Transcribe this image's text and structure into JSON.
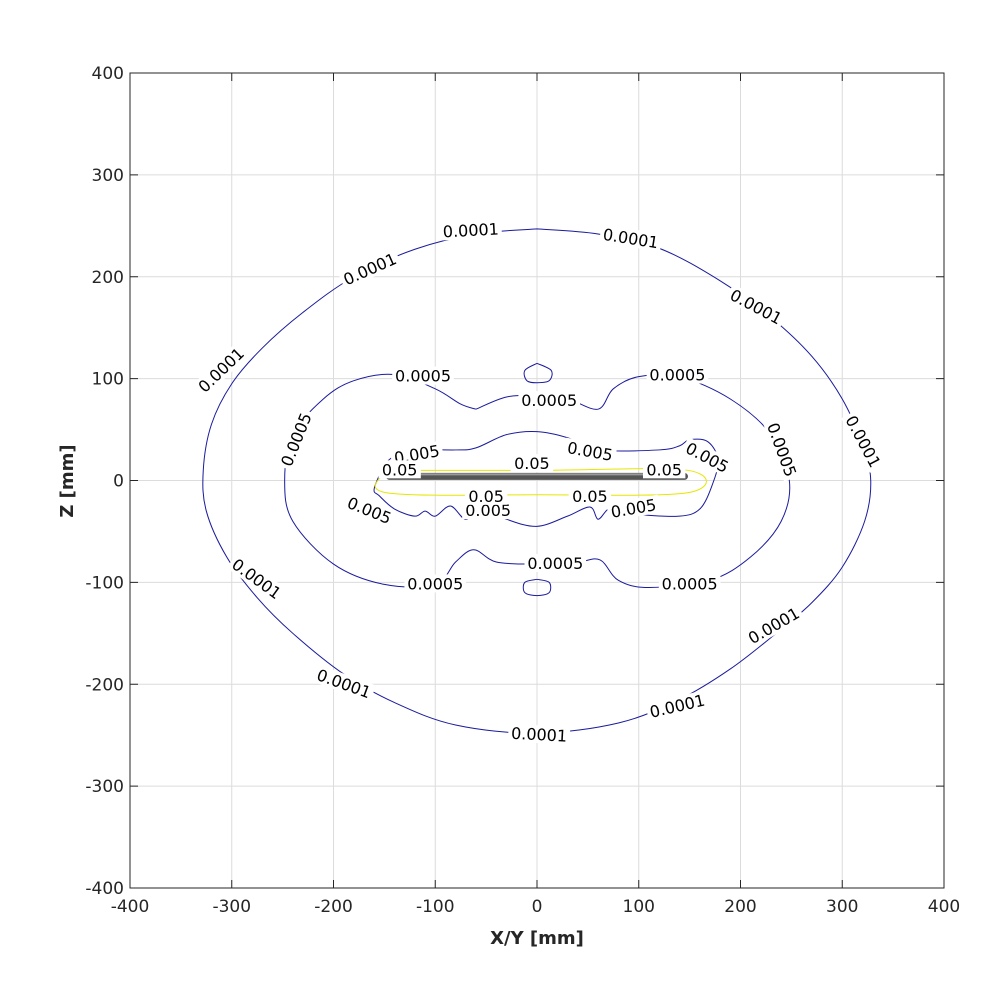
{
  "chart_data": {
    "type": "contour",
    "xlabel": "X/Y [mm]",
    "ylabel": "Z [mm]",
    "xlim": [
      -400,
      400
    ],
    "ylim": [
      -400,
      400
    ],
    "xticks": [
      -400,
      -300,
      -200,
      -100,
      0,
      100,
      200,
      300,
      400
    ],
    "yticks": [
      -400,
      -300,
      -200,
      -100,
      0,
      100,
      200,
      300,
      400
    ],
    "xtick_labels": [
      "-400",
      "-300",
      "-200",
      "-100",
      "0",
      "100",
      "200",
      "300",
      "400"
    ],
    "ytick_labels": [
      "-400",
      "-300",
      "-200",
      "-100",
      "0",
      "100",
      "200",
      "300",
      "400"
    ],
    "grid": true,
    "colors": {
      "level_0_0001": "#1a1a9e",
      "level_0_0005": "#1a1a9e",
      "level_0_005": "#1a1a9e",
      "level_0_05": "#e6e600",
      "source_bar": "#666666"
    },
    "source_bar": {
      "x": [
        -145,
        145
      ],
      "z": 4
    },
    "contours": [
      {
        "level": "0.0001",
        "paths": [
          [
            [
              0,
              247
            ],
            [
              60,
              242
            ],
            [
              120,
              228
            ],
            [
              180,
              196
            ],
            [
              230,
              160
            ],
            [
              270,
              122
            ],
            [
              300,
              80
            ],
            [
              320,
              35
            ],
            [
              328,
              0
            ],
            [
              322,
              -40
            ],
            [
              300,
              -85
            ],
            [
              270,
              -120
            ],
            [
              235,
              -150
            ],
            [
              190,
              -185
            ],
            [
              140,
              -215
            ],
            [
              80,
              -238
            ],
            [
              0,
              -248
            ],
            [
              -80,
              -240
            ],
            [
              -140,
              -218
            ],
            [
              -190,
              -190
            ],
            [
              -240,
              -150
            ],
            [
              -275,
              -115
            ],
            [
              -305,
              -75
            ],
            [
              -325,
              -30
            ],
            [
              -328,
              10
            ],
            [
              -320,
              55
            ],
            [
              -300,
              95
            ],
            [
              -270,
              130
            ],
            [
              -230,
              165
            ],
            [
              -180,
              200
            ],
            [
              -120,
              227
            ],
            [
              -60,
              242
            ],
            [
              0,
              247
            ]
          ]
        ],
        "labels": [
          {
            "text": "0.0001",
            "x": -65,
            "z": 245,
            "angle": -3
          },
          {
            "text": "0.0001",
            "x": 92,
            "z": 237,
            "angle": 9
          },
          {
            "text": "0.0001",
            "x": 215,
            "z": 170,
            "angle": 28
          },
          {
            "text": "0.0001",
            "x": 320,
            "z": 38,
            "angle": 62
          },
          {
            "text": "0.0001",
            "x": 233,
            "z": -143,
            "angle": -30
          },
          {
            "text": "0.0001",
            "x": 138,
            "z": -222,
            "angle": -13
          },
          {
            "text": "0.0001",
            "x": 2,
            "z": -250,
            "angle": 3
          },
          {
            "text": "0.0001",
            "x": -190,
            "z": -200,
            "angle": 20
          },
          {
            "text": "0.0001",
            "x": -276,
            "z": -97,
            "angle": 36
          },
          {
            "text": "0.0001",
            "x": -310,
            "z": 108,
            "angle": -44
          },
          {
            "text": "0.0001",
            "x": -164,
            "z": 207,
            "angle": -24
          }
        ]
      },
      {
        "level": "0.0005",
        "paths": [
          [
            [
              -60,
              70
            ],
            [
              -30,
              82
            ],
            [
              0,
              83
            ],
            [
              30,
              80
            ],
            [
              60,
              70
            ],
            [
              75,
              90
            ],
            [
              100,
              102
            ],
            [
              140,
              102
            ],
            [
              190,
              80
            ],
            [
              230,
              45
            ],
            [
              248,
              0
            ],
            [
              240,
              -40
            ],
            [
              210,
              -75
            ],
            [
              170,
              -98
            ],
            [
              110,
              -105
            ],
            [
              80,
              -98
            ],
            [
              62,
              -78
            ],
            [
              40,
              -80
            ],
            [
              0,
              -82
            ],
            [
              -40,
              -80
            ],
            [
              -62,
              -68
            ],
            [
              -80,
              -80
            ],
            [
              -100,
              -102
            ],
            [
              -150,
              -102
            ],
            [
              -200,
              -82
            ],
            [
              -240,
              -40
            ],
            [
              -248,
              0
            ],
            [
              -240,
              45
            ],
            [
              -210,
              80
            ],
            [
              -180,
              98
            ],
            [
              -140,
              104
            ],
            [
              -100,
              90
            ],
            [
              -75,
              75
            ],
            [
              -60,
              70
            ]
          ],
          [
            [
              0,
              115
            ],
            [
              -12,
              108
            ],
            [
              -10,
              98
            ],
            [
              0,
              96
            ],
            [
              12,
              98
            ],
            [
              14,
              108
            ],
            [
              0,
              115
            ]
          ],
          [
            [
              0,
              -97
            ],
            [
              -12,
              -100
            ],
            [
              -12,
              -110
            ],
            [
              0,
              -113
            ],
            [
              12,
              -110
            ],
            [
              12,
              -100
            ],
            [
              0,
              -97
            ]
          ]
        ],
        "labels": [
          {
            "text": "0.0005",
            "x": -112,
            "z": 102,
            "angle": 0
          },
          {
            "text": "0.0005",
            "x": 12,
            "z": 78,
            "angle": 0
          },
          {
            "text": "0.0005",
            "x": 138,
            "z": 103,
            "angle": 0
          },
          {
            "text": "0.0005",
            "x": 240,
            "z": 30,
            "angle": 70
          },
          {
            "text": "0.0005",
            "x": 150,
            "z": -102,
            "angle": 0
          },
          {
            "text": "0.0005",
            "x": 18,
            "z": -82,
            "angle": 0
          },
          {
            "text": "0.0005",
            "x": -100,
            "z": -102,
            "angle": 0
          },
          {
            "text": "0.0005",
            "x": -236,
            "z": 40,
            "angle": -68
          }
        ]
      },
      {
        "level": "0.005",
        "paths": [
          [
            [
              -150,
              16
            ],
            [
              -140,
              24
            ],
            [
              -120,
              30
            ],
            [
              -80,
              30
            ],
            [
              -60,
              32
            ],
            [
              -30,
              45
            ],
            [
              0,
              48
            ],
            [
              30,
              42
            ],
            [
              60,
              30
            ],
            [
              120,
              30
            ],
            [
              140,
              34
            ],
            [
              150,
              40
            ],
            [
              168,
              38
            ],
            [
              178,
              20
            ],
            [
              172,
              -5
            ],
            [
              160,
              -28
            ],
            [
              140,
              -35
            ],
            [
              100,
              -33
            ],
            [
              82,
              -26
            ],
            [
              70,
              -28
            ],
            [
              60,
              -38
            ],
            [
              52,
              -26
            ],
            [
              30,
              -35
            ],
            [
              0,
              -45
            ],
            [
              -30,
              -38
            ],
            [
              -55,
              -26
            ],
            [
              -70,
              -38
            ],
            [
              -85,
              -25
            ],
            [
              -100,
              -35
            ],
            [
              -110,
              -30
            ],
            [
              -120,
              -35
            ],
            [
              -140,
              -28
            ],
            [
              -155,
              -15
            ],
            [
              -160,
              -8
            ],
            [
              -150,
              16
            ]
          ]
        ],
        "labels": [
          {
            "text": "0.005",
            "x": -118,
            "z": 25,
            "angle": -10
          },
          {
            "text": "0.005",
            "x": 52,
            "z": 28,
            "angle": 10
          },
          {
            "text": "0.005",
            "x": 167,
            "z": 22,
            "angle": 28
          },
          {
            "text": "0.005",
            "x": 95,
            "z": -28,
            "angle": -10
          },
          {
            "text": "0.005",
            "x": -48,
            "z": -30,
            "angle": 0
          },
          {
            "text": "0.005",
            "x": -165,
            "z": -30,
            "angle": 22
          }
        ]
      },
      {
        "level": "0.05",
        "paths": [
          [
            [
              -148,
              10
            ],
            [
              0,
              10
            ],
            [
              148,
              10
            ],
            [
              148,
              -12
            ],
            [
              0,
              -14
            ],
            [
              -148,
              -12
            ],
            [
              -148,
              10
            ]
          ]
        ],
        "labels": [
          {
            "text": "0.05",
            "x": -135,
            "z": 10,
            "angle": 0
          },
          {
            "text": "0.05",
            "x": -5,
            "z": 16,
            "angle": 0
          },
          {
            "text": "0.05",
            "x": 125,
            "z": 10,
            "angle": 0
          },
          {
            "text": "0.05",
            "x": -50,
            "z": -16,
            "angle": 0
          },
          {
            "text": "0.05",
            "x": 52,
            "z": -16,
            "angle": 0
          }
        ]
      }
    ]
  }
}
